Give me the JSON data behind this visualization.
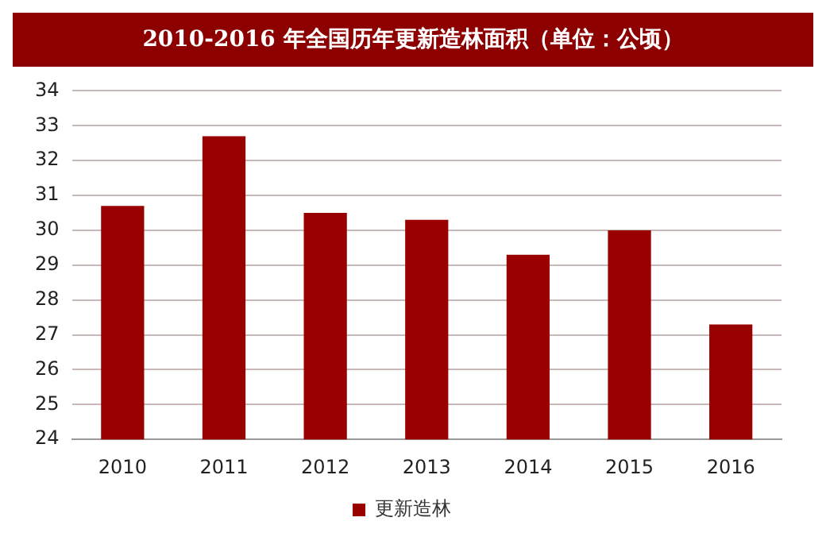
{
  "chart_data": {
    "type": "bar",
    "title": "2010-2016 年全国历年更新造林面积（单位：公顷）",
    "categories": [
      "2010",
      "2011",
      "2012",
      "2013",
      "2014",
      "2015",
      "2016"
    ],
    "series": [
      {
        "name": "更新造林",
        "color": "#990000",
        "values": [
          30.7,
          32.7,
          30.5,
          30.3,
          29.3,
          30.0,
          27.3
        ]
      }
    ],
    "ylim": [
      24,
      34
    ],
    "yticks": [
      24,
      25,
      26,
      27,
      28,
      29,
      30,
      31,
      32,
      33,
      34
    ],
    "grid": "y",
    "legend": "bottom"
  }
}
